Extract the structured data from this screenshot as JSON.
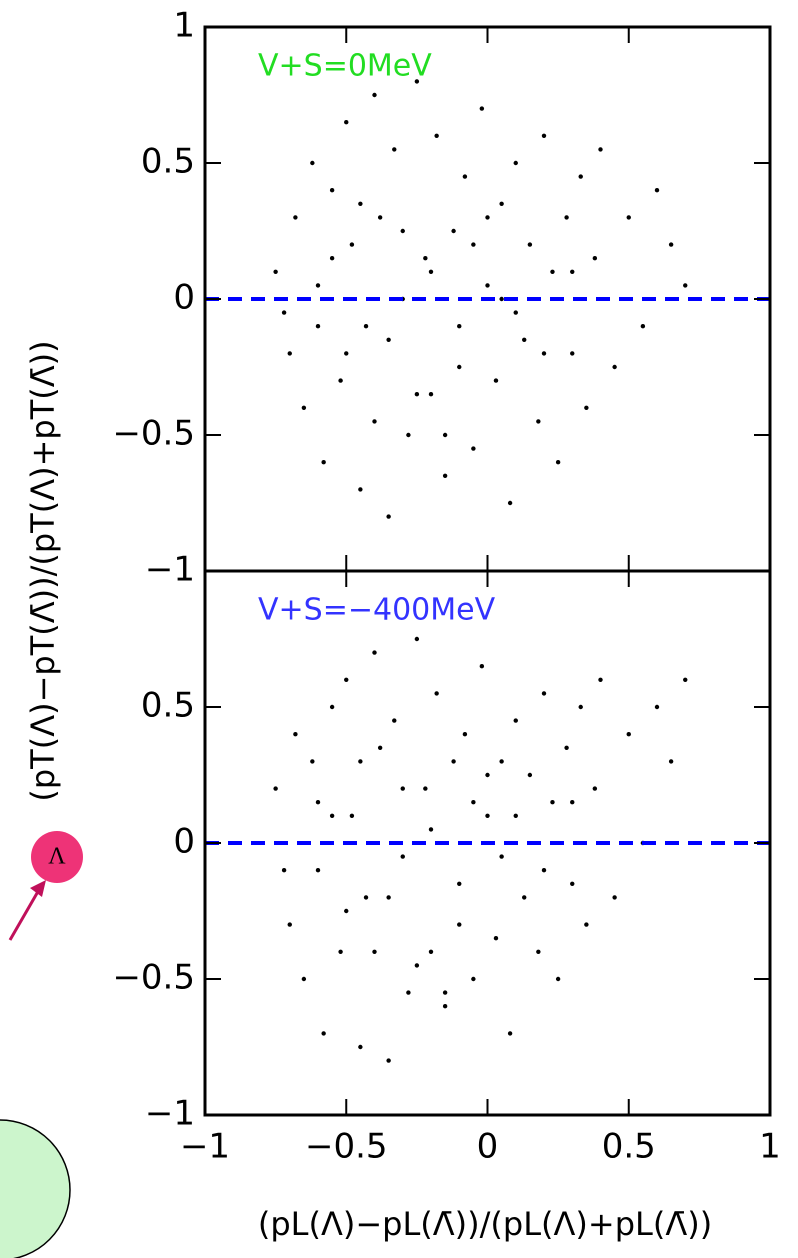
{
  "chart_data": [
    {
      "type": "scatter",
      "annotation": "V+S=0MeV",
      "annotation_color": "#22dd22",
      "ylabel": "(pT(Λ)−pT(Λ̄))/(pT(Λ)+pT(Λ̄))",
      "color": "#000000",
      "reference_line": {
        "value": 0,
        "color": "#0000ff"
      },
      "xlim": [
        -1,
        1
      ],
      "ylim": [
        -1,
        1
      ],
      "yticks": [
        {
          "value": -1,
          "label": "−1"
        },
        {
          "value": -0.5,
          "label": "−0.5"
        },
        0,
        0.5,
        1
      ],
      "x": [
        -0.75,
        -0.7,
        -0.68,
        -0.65,
        -0.62,
        -0.6,
        -0.58,
        -0.55,
        -0.52,
        -0.5,
        -0.48,
        -0.45,
        -0.43,
        -0.4,
        -0.38,
        -0.35,
        -0.33,
        -0.3,
        -0.28,
        -0.25,
        -0.22,
        -0.2,
        -0.18,
        -0.15,
        -0.12,
        -0.1,
        -0.08,
        -0.05,
        -0.02,
        0,
        0.03,
        0.05,
        0.08,
        0.1,
        0.13,
        0.15,
        0.18,
        0.2,
        0.23,
        0.25,
        0.28,
        0.3,
        0.33,
        0.35,
        0.38,
        0.4,
        0.45,
        0.5,
        0.55,
        0.6,
        0.65,
        0.7,
        -0.72,
        -0.6,
        -0.5,
        -0.4,
        -0.3,
        -0.2,
        -0.1,
        0,
        0.1,
        0.2,
        0.3,
        -0.55,
        -0.45,
        -0.35,
        -0.25,
        -0.15,
        -0.05,
        0.05
      ],
      "y": [
        0.1,
        -0.2,
        0.3,
        -0.4,
        0.5,
        0.05,
        -0.6,
        0.4,
        -0.3,
        0.65,
        0.2,
        -0.7,
        -0.1,
        0.75,
        0.3,
        -0.8,
        0.55,
        0.0,
        -0.5,
        0.8,
        0.15,
        -0.35,
        0.6,
        -0.65,
        0.25,
        -0.1,
        0.45,
        -0.55,
        0.7,
        0.05,
        -0.3,
        0.35,
        -0.75,
        0.5,
        -0.15,
        0.2,
        -0.45,
        0.6,
        0.1,
        -0.6,
        0.3,
        -0.2,
        0.45,
        -0.4,
        0.15,
        0.55,
        -0.25,
        0.3,
        -0.1,
        0.4,
        0.2,
        0.05,
        -0.05,
        -0.1,
        -0.2,
        -0.45,
        0.25,
        0.1,
        -0.25,
        0.3,
        -0.05,
        -0.2,
        0.1,
        0.15,
        0.35,
        -0.15,
        -0.35,
        -0.5,
        0.2,
        0.0
      ]
    },
    {
      "type": "scatter",
      "annotation": "V+S=−400MeV",
      "annotation_color": "#3333ff",
      "xlabel": "(pL(Λ)−pL(Λ̄))/(pL(Λ)+pL(Λ̄))",
      "color": "#000000",
      "reference_line": {
        "value": 0,
        "color": "#0000ff"
      },
      "xlim": [
        -1,
        1
      ],
      "ylim": [
        -1,
        1
      ],
      "xticks": [
        {
          "value": -1,
          "label": "−1"
        },
        {
          "value": -0.5,
          "label": "−0.5"
        },
        0,
        0.5,
        1
      ],
      "yticks": [
        {
          "value": -1,
          "label": "−1"
        },
        {
          "value": -0.5,
          "label": "−0.5"
        },
        0,
        0.5
      ],
      "x": [
        -0.75,
        -0.7,
        -0.68,
        -0.65,
        -0.62,
        -0.6,
        -0.58,
        -0.55,
        -0.52,
        -0.5,
        -0.48,
        -0.45,
        -0.43,
        -0.4,
        -0.38,
        -0.35,
        -0.33,
        -0.3,
        -0.28,
        -0.25,
        -0.22,
        -0.2,
        -0.18,
        -0.15,
        -0.12,
        -0.1,
        -0.08,
        -0.05,
        -0.02,
        0,
        0.03,
        0.05,
        0.08,
        0.1,
        0.13,
        0.15,
        0.18,
        0.2,
        0.23,
        0.25,
        0.28,
        0.3,
        0.33,
        0.35,
        0.38,
        0.4,
        0.45,
        0.5,
        0.55,
        0.6,
        0.65,
        0.7,
        -0.72,
        -0.6,
        -0.5,
        -0.4,
        -0.3,
        -0.2,
        -0.1,
        0,
        0.1,
        0.2,
        0.3,
        -0.55,
        -0.45,
        -0.35,
        -0.25,
        -0.15,
        -0.05,
        0.05
      ],
      "y": [
        0.2,
        -0.3,
        0.4,
        -0.5,
        0.3,
        -0.1,
        -0.7,
        0.5,
        -0.4,
        0.6,
        0.1,
        -0.75,
        -0.2,
        0.7,
        0.35,
        -0.8,
        0.45,
        -0.05,
        -0.55,
        0.75,
        0.2,
        -0.4,
        0.55,
        -0.6,
        0.3,
        -0.15,
        0.4,
        -0.5,
        0.65,
        0.1,
        -0.35,
        0.3,
        -0.7,
        0.45,
        -0.2,
        0.25,
        -0.4,
        0.55,
        0.15,
        -0.5,
        0.35,
        -0.15,
        0.5,
        -0.3,
        0.2,
        0.6,
        -0.2,
        0.4,
        0.0,
        0.5,
        0.3,
        0.6,
        -0.1,
        0.15,
        -0.25,
        -0.4,
        0.2,
        0.05,
        -0.3,
        0.25,
        0.1,
        -0.1,
        0.15,
        0.1,
        0.3,
        -0.2,
        -0.45,
        -0.55,
        0.15,
        -0.05
      ]
    }
  ],
  "figure_fragment": {
    "particle_label": "Λ"
  }
}
